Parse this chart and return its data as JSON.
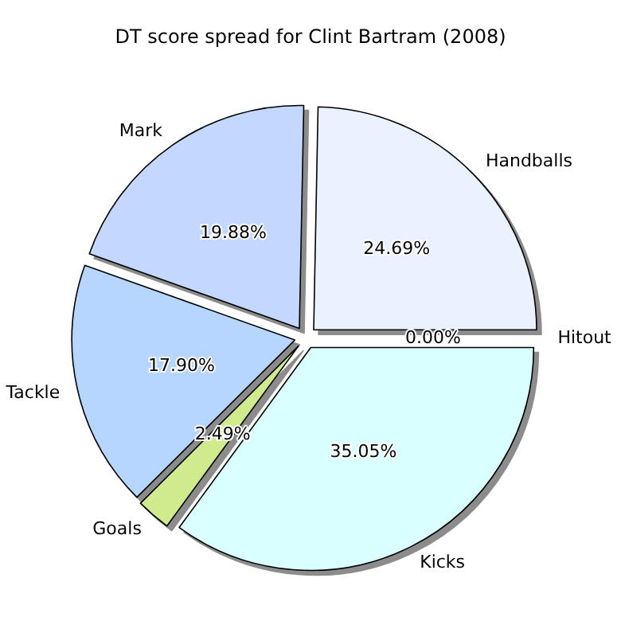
{
  "chart_data": {
    "type": "pie",
    "title": "DT score spread for Clint Bartram (2008)",
    "categories": [
      "Handballs",
      "Mark",
      "Tackle",
      "Goals",
      "Kicks",
      "Hitout"
    ],
    "values": [
      24.69,
      19.88,
      17.9,
      2.49,
      35.05,
      0.0
    ],
    "colors": [
      "#eaf1ff",
      "#c4d8ff",
      "#b6d6ff",
      "#cfeb8e",
      "#d9ffff",
      "#f0f0ff"
    ],
    "value_labels": [
      "24.69%",
      "19.88%",
      "17.90%",
      "2.49%",
      "35.05%",
      "0.00%"
    ],
    "legend": false
  }
}
